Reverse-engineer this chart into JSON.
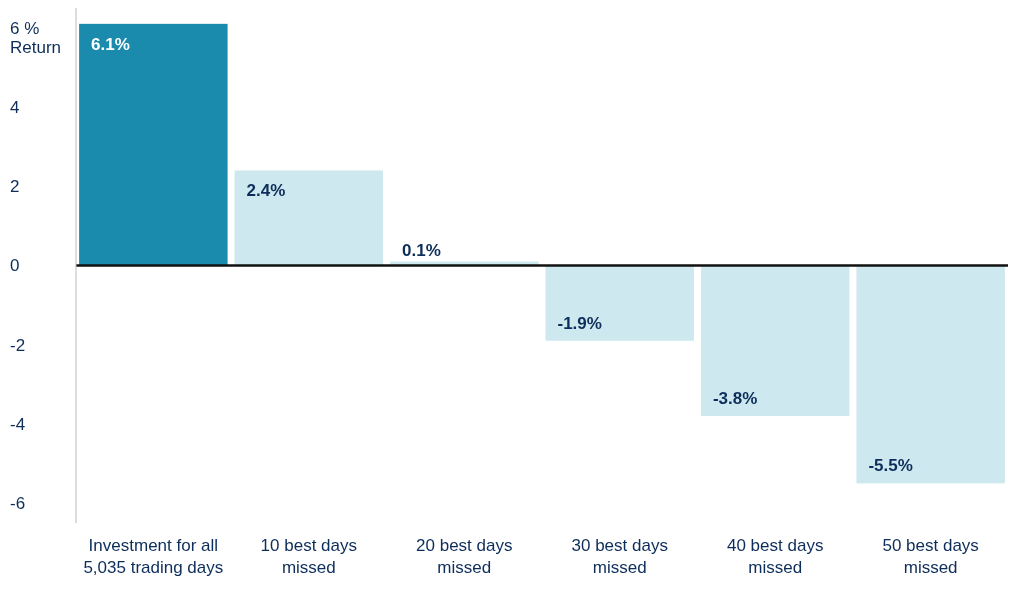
{
  "chart_data": {
    "type": "bar",
    "ylabel": "% Return",
    "categories": [
      "Investment for all 5,035 trading days",
      "10 best days missed",
      "20 best days missed",
      "30 best days missed",
      "40 best days missed",
      "50 best days missed"
    ],
    "values": [
      6.1,
      2.4,
      0.1,
      -1.9,
      -3.8,
      -5.5
    ],
    "colors": [
      "#1a8aad",
      "#cde9ef",
      "#cde9ef",
      "#cde9ef",
      "#cde9ef",
      "#cde9ef"
    ],
    "value_labels": [
      "6.1%",
      "2.4%",
      "0.1%",
      "-1.9%",
      "-3.8%",
      "-5.5%"
    ],
    "ylim": [
      -6.5,
      6.5
    ],
    "yticks": [
      -6,
      -4,
      -2,
      0,
      2,
      4,
      6
    ]
  }
}
